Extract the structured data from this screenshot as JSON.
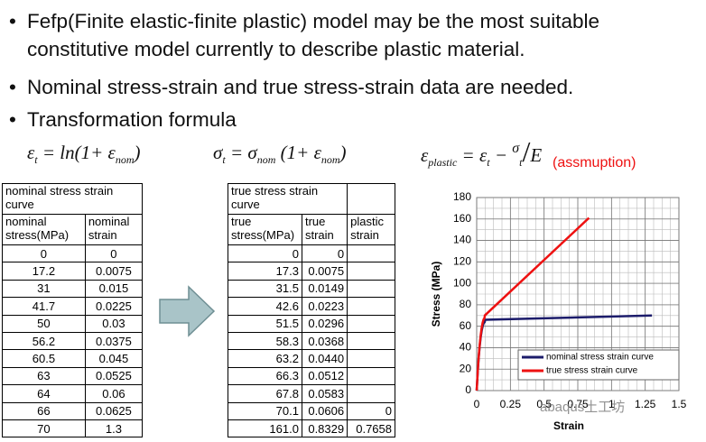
{
  "bullets": [
    "Fefp(Finite elastic-finite plastic) model may be the most suitable constitutive model currently to describe plastic material.",
    "Nominal stress-strain and true stress-strain data are needed.",
    "Transformation formula"
  ],
  "formulas": [
    [
      {
        "text": "ε",
        "style": "normal"
      },
      {
        "text": "t",
        "style": "sub"
      },
      {
        "text": " = ln(1+ ε",
        "style": "normal"
      },
      {
        "text": "nom",
        "style": "sub"
      },
      {
        "text": ")",
        "style": "normal"
      }
    ],
    [
      {
        "text": "σ",
        "style": "normal"
      },
      {
        "text": "t",
        "style": "sub"
      },
      {
        "text": " = σ",
        "style": "normal"
      },
      {
        "text": "nom",
        "style": "sub"
      },
      {
        "text": " (1+ ε",
        "style": "normal"
      },
      {
        "text": "nom",
        "style": "sub"
      },
      {
        "text": ")",
        "style": "normal"
      }
    ],
    [
      {
        "text": "ε",
        "style": "normal"
      },
      {
        "text": "plastic",
        "style": "sub"
      },
      {
        "text": " = ε",
        "style": "normal"
      },
      {
        "text": "t",
        "style": "sub"
      },
      {
        "text": " − ",
        "style": "normal"
      },
      {
        "text": "σ",
        "style": "sup"
      },
      {
        "text": "t",
        "style": "sub"
      },
      {
        "text": "/",
        "style": "big"
      },
      {
        "text": "E",
        "style": "normal"
      }
    ]
  ],
  "annotation": "(assmuption)",
  "nominal_table": {
    "title": "nominal stress strain curve",
    "headers": [
      "nominal stress(MPa)",
      "nominal strain"
    ],
    "rows": [
      [
        "0",
        "0"
      ],
      [
        "17.2",
        "0.0075"
      ],
      [
        "31",
        "0.015"
      ],
      [
        "41.7",
        "0.0225"
      ],
      [
        "50",
        "0.03"
      ],
      [
        "56.2",
        "0.0375"
      ],
      [
        "60.5",
        "0.045"
      ],
      [
        "63",
        "0.0525"
      ],
      [
        "64",
        "0.06"
      ],
      [
        "66",
        "0.0625"
      ],
      [
        "70",
        "1.3"
      ]
    ]
  },
  "true_table": {
    "title": "true stress strain curve",
    "headers": [
      "true stress(MPa)",
      "true strain",
      "plastic strain"
    ],
    "rows": [
      [
        "0",
        "0",
        null
      ],
      [
        "17.3",
        "0.0075",
        null
      ],
      [
        "31.5",
        "0.0149",
        null
      ],
      [
        "42.6",
        "0.0223",
        null
      ],
      [
        "51.5",
        "0.0296",
        null
      ],
      [
        "58.3",
        "0.0368",
        null
      ],
      [
        "63.2",
        "0.0440",
        null
      ],
      [
        "66.3",
        "0.0512",
        null
      ],
      [
        "67.8",
        "0.0583",
        null
      ],
      [
        "70.1",
        "0.0606",
        "0"
      ],
      [
        "161.0",
        "0.8329",
        "0.7658"
      ]
    ]
  },
  "chart": {
    "type": "line",
    "x_label": "Strain",
    "y_label": "Stress (MPa)",
    "xlim": [
      0,
      1.5
    ],
    "xticks": [
      0,
      0.25,
      0.5,
      0.75,
      1,
      1.25,
      1.5
    ],
    "ylim": [
      0,
      180
    ],
    "yticks": [
      0,
      20,
      40,
      60,
      80,
      100,
      120,
      140,
      160,
      180
    ],
    "grid": true,
    "legend": "bottom-right",
    "series": [
      {
        "name": "nominal stress strain curve",
        "color": "#1c1c6b",
        "x": [
          0,
          0.0075,
          0.015,
          0.0225,
          0.03,
          0.0375,
          0.045,
          0.0525,
          0.06,
          0.0625,
          1.3
        ],
        "values": [
          0,
          17.2,
          31,
          41.7,
          50,
          56.2,
          60.5,
          63,
          64,
          66,
          70
        ]
      },
      {
        "name": "true stress strain curve",
        "color": "#ee1111",
        "x": [
          0,
          0.0075,
          0.0149,
          0.0223,
          0.0296,
          0.0368,
          0.044,
          0.0512,
          0.0583,
          0.0606,
          0.8329
        ],
        "values": [
          0,
          17.3,
          31.5,
          42.6,
          51.5,
          58.3,
          63.2,
          66.3,
          67.8,
          70.1,
          161
        ]
      }
    ]
  },
  "watermark": "abaqus土工坊"
}
